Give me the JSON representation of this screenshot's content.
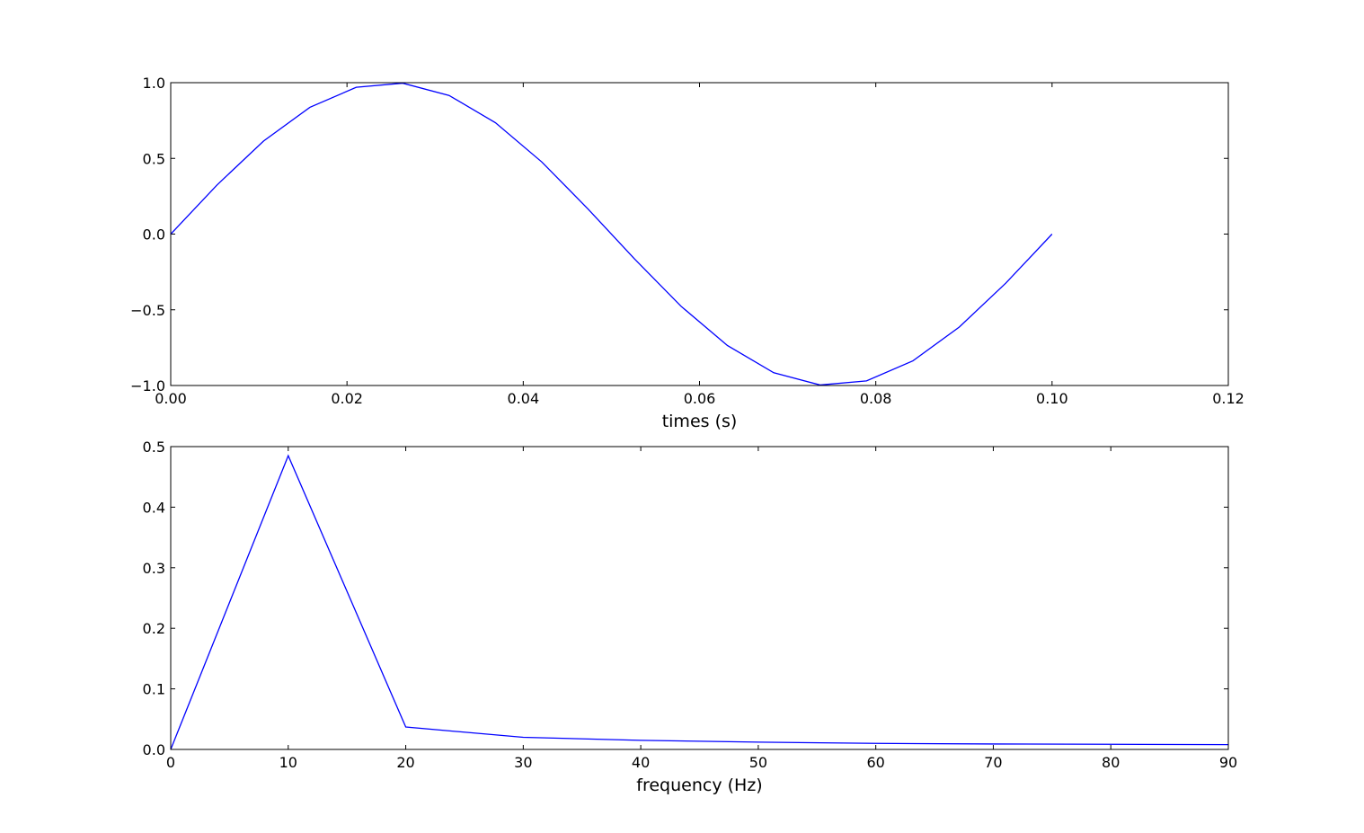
{
  "chart_data": [
    {
      "type": "line",
      "xlabel": "times (s)",
      "x": [
        0,
        0.00526,
        0.01053,
        0.01579,
        0.02105,
        0.02632,
        0.03158,
        0.03684,
        0.04211,
        0.04737,
        0.05263,
        0.05789,
        0.06316,
        0.06842,
        0.07368,
        0.07895,
        0.08421,
        0.08947,
        0.09474,
        0.1
      ],
      "series": [
        {
          "color": "#0000ff",
          "values": [
            0,
            0.3247,
            0.6142,
            0.8372,
            0.9694,
            0.9966,
            0.9158,
            0.7357,
            0.4759,
            0.1646,
            -0.1646,
            -0.4759,
            -0.7357,
            -0.9158,
            -0.9966,
            -0.9694,
            -0.8372,
            -0.6142,
            -0.3247,
            0
          ]
        }
      ],
      "xlim": [
        0,
        0.12
      ],
      "xticks": [
        {
          "value": 0,
          "label": "0.00"
        },
        {
          "value": 0.02,
          "label": "0.02"
        },
        {
          "value": 0.04,
          "label": "0.04"
        },
        {
          "value": 0.06,
          "label": "0.06"
        },
        {
          "value": 0.08,
          "label": "0.08"
        },
        {
          "value": 0.1,
          "label": "0.10"
        },
        {
          "value": 0.12,
          "label": "0.12"
        }
      ],
      "ylim": [
        -1,
        1
      ],
      "yticks": [
        {
          "value": -1,
          "label": "−1.0"
        },
        {
          "value": -0.5,
          "label": "−0.5"
        },
        {
          "value": 0,
          "label": "0.0"
        },
        {
          "value": 0.5,
          "label": "0.5"
        },
        {
          "value": 1,
          "label": "1.0"
        }
      ]
    },
    {
      "type": "line",
      "xlabel": "frequency (Hz)",
      "x": [
        0,
        10,
        20,
        30,
        40,
        50,
        60,
        70,
        80,
        90
      ],
      "series": [
        {
          "color": "#0000ff",
          "values": [
            0,
            0.485,
            0.037,
            0.02,
            0.015,
            0.012,
            0.01,
            0.009,
            0.0085,
            0.008
          ]
        }
      ],
      "xlim": [
        0,
        90
      ],
      "xticks": [
        0,
        10,
        20,
        30,
        40,
        50,
        60,
        70,
        80,
        90
      ],
      "ylim": [
        0,
        0.5
      ],
      "yticks": [
        {
          "value": 0,
          "label": "0.0"
        },
        {
          "value": 0.1,
          "label": "0.1"
        },
        {
          "value": 0.2,
          "label": "0.2"
        },
        {
          "value": 0.3,
          "label": "0.3"
        },
        {
          "value": 0.4,
          "label": "0.4"
        },
        {
          "value": 0.5,
          "label": "0.5"
        }
      ]
    }
  ]
}
